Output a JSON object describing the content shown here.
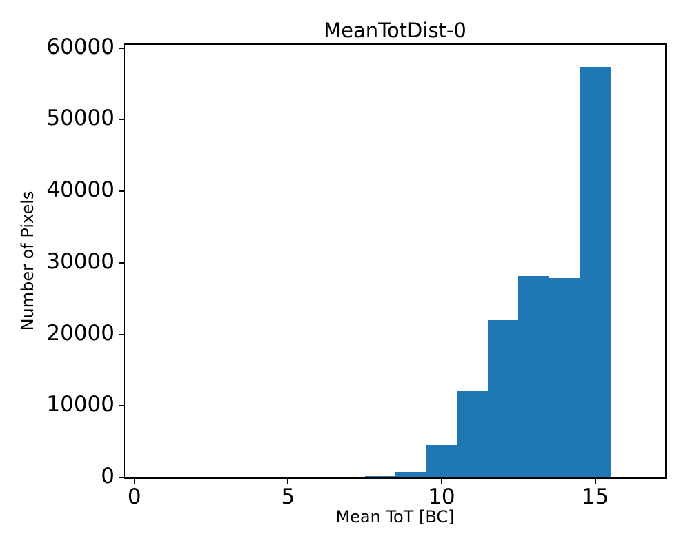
{
  "figure": {
    "title": "MeanTotDist-0",
    "xlabel": "Mean ToT [BC]",
    "ylabel": "Number of Pixels"
  },
  "chart_data": {
    "type": "bar",
    "subtype": "histogram",
    "title": "MeanTotDist-0",
    "xlabel": "Mean ToT [BC]",
    "ylabel": "Number of Pixels",
    "bin_edges": [
      7.5,
      8.5,
      9.5,
      10.5,
      11.5,
      12.5,
      13.5,
      14.5,
      15.5
    ],
    "counts": [
      150,
      800,
      4500,
      12100,
      22000,
      28200,
      27900,
      57400
    ],
    "xticks": [
      0,
      5,
      10,
      15
    ],
    "yticks": [
      0,
      10000,
      20000,
      30000,
      40000,
      50000,
      60000
    ],
    "xlim": [
      -0.31,
      17.28
    ],
    "ylim": [
      0,
      60450
    ],
    "bar_color": "#1f77b4",
    "axis_color": "#000000",
    "background_color": "#ffffff",
    "grid": false,
    "legend_position": "none"
  }
}
